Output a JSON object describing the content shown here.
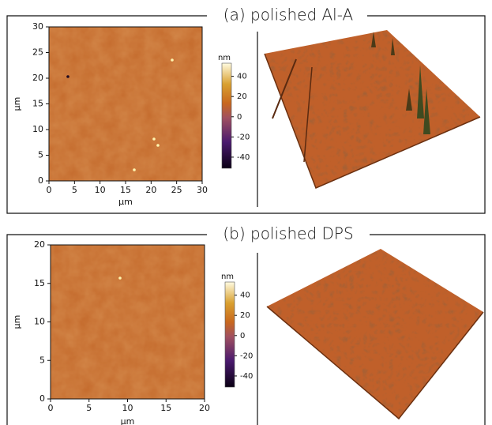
{
  "panels": [
    {
      "title": "(a) polished Al-A",
      "map": {
        "xlabel": "µm",
        "ylabel": "µm",
        "xlim": [
          0,
          30
        ],
        "ylim": [
          0,
          30
        ],
        "xticks": [
          0,
          5,
          10,
          15,
          20,
          25,
          30
        ],
        "yticks": [
          0,
          5,
          10,
          15,
          20,
          25,
          30
        ]
      },
      "colorbar": {
        "label": "nm",
        "lim": [
          -51,
          53
        ],
        "ticks": [
          -40,
          -20,
          0,
          20,
          40
        ]
      }
    },
    {
      "title": "(b) polished DPS",
      "map": {
        "xlabel": "µm",
        "ylabel": "µm",
        "xlim": [
          0,
          20
        ],
        "ylim": [
          0,
          20
        ],
        "xticks": [
          0,
          5,
          10,
          15,
          20
        ],
        "yticks": [
          0,
          5,
          10,
          15,
          20
        ]
      },
      "colorbar": {
        "label": "nm",
        "lim": [
          -51,
          53
        ],
        "ticks": [
          -40,
          -20,
          0,
          20,
          40
        ]
      }
    }
  ]
}
